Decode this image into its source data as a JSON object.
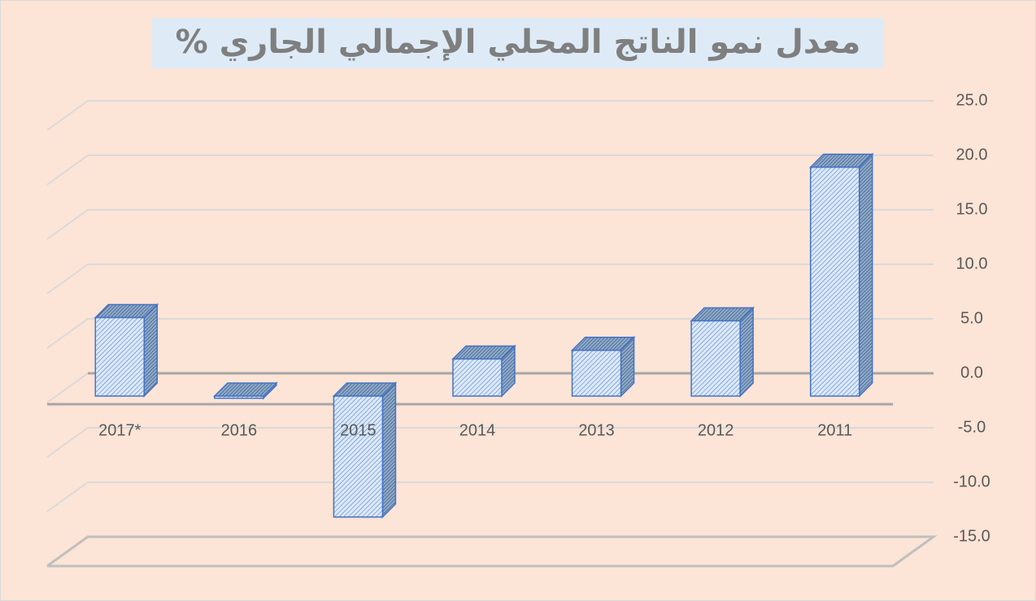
{
  "chart_data": {
    "type": "bar3d",
    "title": "معدل نمو الناتج المحلي الإجمالي الجاري %",
    "categories": [
      "2011",
      "2012",
      "2013",
      "2014",
      "2015",
      "2016",
      "2017*"
    ],
    "values": [
      21.0,
      6.9,
      4.2,
      3.4,
      -11.1,
      -0.2,
      7.2
    ],
    "color": "#dae8f8",
    "edge_color": "#4472c4",
    "ylim": [
      -15,
      25
    ],
    "yticks": [
      {
        "value": -15,
        "label": "-15.0"
      },
      {
        "value": -10,
        "label": "-10.0"
      },
      {
        "value": -5,
        "label": "-5.0"
      },
      {
        "value": 0,
        "label": "0.0"
      },
      {
        "value": 5,
        "label": "5.0"
      },
      {
        "value": 10,
        "label": "10.0"
      },
      {
        "value": 15,
        "label": "15.0"
      },
      {
        "value": 20,
        "label": "20.0"
      },
      {
        "value": 25,
        "label": "25.0"
      }
    ],
    "grid": true,
    "reversed_x": true
  }
}
